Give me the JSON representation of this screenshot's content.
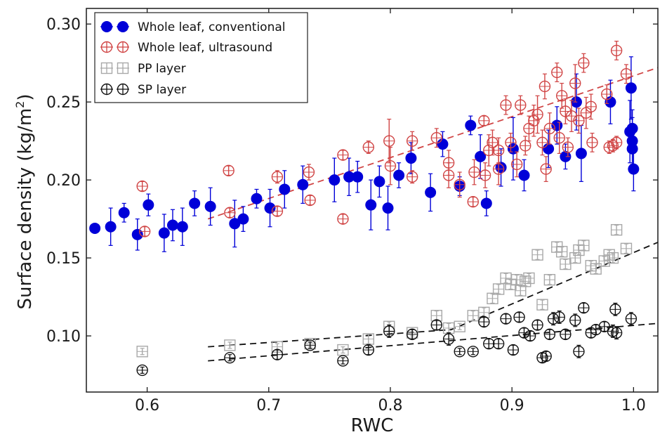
{
  "chart_data": {
    "type": "scatter",
    "xlabel": "RWC",
    "ylabel": "Surface density",
    "ylabel_unit": "(kg/m",
    "ylabel_sup": "2",
    "ylabel_close": ")",
    "xlim": [
      0.55,
      1.02
    ],
    "ylim": [
      0.064,
      0.31
    ],
    "xticks": [
      0.6,
      0.7,
      0.8,
      0.9,
      1.0
    ],
    "xtick_labels": [
      "0.6",
      "0.7",
      "0.8",
      "0.9",
      "1.0"
    ],
    "yticks": [
      0.1,
      0.15,
      0.2,
      0.25,
      0.3
    ],
    "ytick_labels": [
      "0.10",
      "0.15",
      "0.20",
      "0.25",
      "0.30"
    ],
    "legend": [
      {
        "label": "Whole leaf, conventional",
        "style": "filled-circle",
        "color": "#0000d8"
      },
      {
        "label": "Whole leaf, ultrasound",
        "style": "open-circle",
        "color": "#d04444"
      },
      {
        "label": "PP layer",
        "style": "open-square",
        "color": "#a8a8a8"
      },
      {
        "label": "SP layer",
        "style": "open-circle",
        "color": "#111111"
      }
    ],
    "series": [
      {
        "name": "Whole leaf, conventional",
        "color": "#0000d8",
        "marker": "filled-circle",
        "points": [
          [
            0.557,
            0.169,
            0.0
          ],
          [
            0.57,
            0.17,
            0.012
          ],
          [
            0.581,
            0.179,
            0.006
          ],
          [
            0.592,
            0.165,
            0.01
          ],
          [
            0.601,
            0.184,
            0.007
          ],
          [
            0.614,
            0.166,
            0.012
          ],
          [
            0.621,
            0.171,
            0.01
          ],
          [
            0.629,
            0.17,
            0.012
          ],
          [
            0.639,
            0.185,
            0.008
          ],
          [
            0.652,
            0.183,
            0.012
          ],
          [
            0.672,
            0.172,
            0.015
          ],
          [
            0.679,
            0.175,
            0.008
          ],
          [
            0.69,
            0.188,
            0.006
          ],
          [
            0.701,
            0.182,
            0.012
          ],
          [
            0.713,
            0.194,
            0.012
          ],
          [
            0.728,
            0.197,
            0.012
          ],
          [
            0.754,
            0.2,
            0.014
          ],
          [
            0.766,
            0.202,
            0.012
          ],
          [
            0.773,
            0.202,
            0.01
          ],
          [
            0.784,
            0.184,
            0.016
          ],
          [
            0.791,
            0.199,
            0.01
          ],
          [
            0.798,
            0.182,
            0.014
          ],
          [
            0.807,
            0.203,
            0.008
          ],
          [
            0.817,
            0.214,
            0.01
          ],
          [
            0.833,
            0.192,
            0.012
          ],
          [
            0.843,
            0.223,
            0.008
          ],
          [
            0.857,
            0.196,
            0.006
          ],
          [
            0.866,
            0.235,
            0.006
          ],
          [
            0.874,
            0.215,
            0.014
          ],
          [
            0.879,
            0.185,
            0.008
          ],
          [
            0.891,
            0.208,
            0.012
          ],
          [
            0.901,
            0.22,
            0.02
          ],
          [
            0.91,
            0.203,
            0.01
          ],
          [
            0.93,
            0.22,
            0.012
          ],
          [
            0.937,
            0.235,
            0.012
          ],
          [
            0.944,
            0.215,
            0.008
          ],
          [
            0.953,
            0.25,
            0.018
          ],
          [
            0.957,
            0.217,
            0.018
          ],
          [
            0.981,
            0.25,
            0.014
          ],
          [
            0.997,
            0.231,
            0.02
          ],
          [
            0.998,
            0.259,
            0.02
          ],
          [
            0.999,
            0.225,
            0.015
          ],
          [
            0.999,
            0.22,
            0.012
          ],
          [
            1.0,
            0.207,
            0.014
          ],
          [
            0.999,
            0.233,
            0.012
          ]
        ]
      },
      {
        "name": "Whole leaf, ultrasound",
        "color": "#d04444",
        "marker": "open-circle",
        "points": [
          [
            0.596,
            0.196,
            0.003
          ],
          [
            0.598,
            0.167,
            0.003
          ],
          [
            0.667,
            0.206,
            0.003
          ],
          [
            0.668,
            0.179,
            0.003
          ],
          [
            0.707,
            0.202,
            0.004
          ],
          [
            0.707,
            0.18,
            0.003
          ],
          [
            0.733,
            0.205,
            0.005
          ],
          [
            0.734,
            0.187,
            0.003
          ],
          [
            0.761,
            0.216,
            0.003
          ],
          [
            0.761,
            0.175,
            0.003
          ],
          [
            0.782,
            0.221,
            0.004
          ],
          [
            0.799,
            0.225,
            0.014
          ],
          [
            0.8,
            0.209,
            0.012
          ],
          [
            0.818,
            0.225,
            0.006
          ],
          [
            0.818,
            0.202,
            0.004
          ],
          [
            0.838,
            0.227,
            0.006
          ],
          [
            0.848,
            0.211,
            0.008
          ],
          [
            0.848,
            0.203,
            0.008
          ],
          [
            0.857,
            0.197,
            0.008
          ],
          [
            0.868,
            0.186,
            0.003
          ],
          [
            0.869,
            0.205,
            0.008
          ],
          [
            0.877,
            0.238,
            0.003
          ],
          [
            0.878,
            0.203,
            0.008
          ],
          [
            0.881,
            0.219,
            0.01
          ],
          [
            0.884,
            0.224,
            0.008
          ],
          [
            0.889,
            0.207,
            0.01
          ],
          [
            0.889,
            0.219,
            0.008
          ],
          [
            0.895,
            0.248,
            0.006
          ],
          [
            0.899,
            0.224,
            0.006
          ],
          [
            0.904,
            0.21,
            0.008
          ],
          [
            0.907,
            0.248,
            0.006
          ],
          [
            0.911,
            0.222,
            0.006
          ],
          [
            0.914,
            0.233,
            0.008
          ],
          [
            0.918,
            0.238,
            0.01
          ],
          [
            0.921,
            0.242,
            0.012
          ],
          [
            0.925,
            0.224,
            0.008
          ],
          [
            0.927,
            0.26,
            0.008
          ],
          [
            0.928,
            0.207,
            0.008
          ],
          [
            0.931,
            0.233,
            0.01
          ],
          [
            0.937,
            0.269,
            0.006
          ],
          [
            0.939,
            0.227,
            0.01
          ],
          [
            0.941,
            0.254,
            0.008
          ],
          [
            0.944,
            0.244,
            0.008
          ],
          [
            0.946,
            0.221,
            0.006
          ],
          [
            0.949,
            0.241,
            0.01
          ],
          [
            0.952,
            0.262,
            0.012
          ],
          [
            0.955,
            0.238,
            0.008
          ],
          [
            0.959,
            0.275,
            0.006
          ],
          [
            0.961,
            0.243,
            0.01
          ],
          [
            0.965,
            0.247,
            0.008
          ],
          [
            0.966,
            0.224,
            0.006
          ],
          [
            0.978,
            0.255,
            0.006
          ],
          [
            0.98,
            0.221,
            0.004
          ],
          [
            0.983,
            0.222,
            0.004
          ],
          [
            0.986,
            0.224,
            0.004
          ],
          [
            0.986,
            0.283,
            0.006
          ],
          [
            0.994,
            0.268,
            0.006
          ]
        ]
      },
      {
        "name": "PP layer",
        "color": "#a8a8a8",
        "marker": "open-square",
        "points": [
          [
            0.596,
            0.09,
            0.002
          ],
          [
            0.668,
            0.094,
            0.002
          ],
          [
            0.707,
            0.093,
            0.002
          ],
          [
            0.734,
            0.095,
            0.002
          ],
          [
            0.761,
            0.091,
            0.002
          ],
          [
            0.782,
            0.098,
            0.003
          ],
          [
            0.799,
            0.106,
            0.003
          ],
          [
            0.818,
            0.102,
            0.002
          ],
          [
            0.838,
            0.113,
            0.003
          ],
          [
            0.848,
            0.105,
            0.003
          ],
          [
            0.857,
            0.106,
            0.002
          ],
          [
            0.868,
            0.113,
            0.003
          ],
          [
            0.877,
            0.115,
            0.003
          ],
          [
            0.884,
            0.124,
            0.003
          ],
          [
            0.889,
            0.13,
            0.003
          ],
          [
            0.895,
            0.137,
            0.003
          ],
          [
            0.899,
            0.133,
            0.003
          ],
          [
            0.904,
            0.136,
            0.003
          ],
          [
            0.907,
            0.129,
            0.003
          ],
          [
            0.911,
            0.135,
            0.003
          ],
          [
            0.914,
            0.137,
            0.003
          ],
          [
            0.921,
            0.152,
            0.003
          ],
          [
            0.925,
            0.12,
            0.003
          ],
          [
            0.931,
            0.136,
            0.003
          ],
          [
            0.937,
            0.157,
            0.003
          ],
          [
            0.941,
            0.154,
            0.003
          ],
          [
            0.944,
            0.146,
            0.003
          ],
          [
            0.952,
            0.15,
            0.003
          ],
          [
            0.955,
            0.155,
            0.003
          ],
          [
            0.959,
            0.158,
            0.003
          ],
          [
            0.965,
            0.145,
            0.003
          ],
          [
            0.969,
            0.143,
            0.003
          ],
          [
            0.976,
            0.148,
            0.003
          ],
          [
            0.98,
            0.152,
            0.003
          ],
          [
            0.983,
            0.15,
            0.003
          ],
          [
            0.986,
            0.168,
            0.003
          ],
          [
            0.994,
            0.156,
            0.003
          ]
        ]
      },
      {
        "name": "SP layer",
        "color": "#111111",
        "marker": "open-circle",
        "points": [
          [
            0.596,
            0.078,
            0.002
          ],
          [
            0.668,
            0.086,
            0.002
          ],
          [
            0.707,
            0.088,
            0.003
          ],
          [
            0.734,
            0.094,
            0.002
          ],
          [
            0.761,
            0.084,
            0.002
          ],
          [
            0.782,
            0.091,
            0.003
          ],
          [
            0.799,
            0.103,
            0.004
          ],
          [
            0.818,
            0.101,
            0.003
          ],
          [
            0.838,
            0.107,
            0.003
          ],
          [
            0.848,
            0.098,
            0.004
          ],
          [
            0.857,
            0.09,
            0.002
          ],
          [
            0.868,
            0.09,
            0.002
          ],
          [
            0.877,
            0.109,
            0.003
          ],
          [
            0.881,
            0.095,
            0.003
          ],
          [
            0.889,
            0.095,
            0.003
          ],
          [
            0.895,
            0.111,
            0.003
          ],
          [
            0.901,
            0.091,
            0.003
          ],
          [
            0.906,
            0.112,
            0.003
          ],
          [
            0.91,
            0.102,
            0.003
          ],
          [
            0.915,
            0.1,
            0.003
          ],
          [
            0.921,
            0.107,
            0.003
          ],
          [
            0.925,
            0.086,
            0.003
          ],
          [
            0.928,
            0.087,
            0.003
          ],
          [
            0.931,
            0.101,
            0.003
          ],
          [
            0.934,
            0.111,
            0.004
          ],
          [
            0.939,
            0.112,
            0.004
          ],
          [
            0.944,
            0.101,
            0.003
          ],
          [
            0.952,
            0.11,
            0.004
          ],
          [
            0.955,
            0.09,
            0.004
          ],
          [
            0.959,
            0.118,
            0.003
          ],
          [
            0.965,
            0.102,
            0.003
          ],
          [
            0.969,
            0.104,
            0.003
          ],
          [
            0.976,
            0.106,
            0.003
          ],
          [
            0.983,
            0.103,
            0.004
          ],
          [
            0.985,
            0.117,
            0.004
          ],
          [
            0.986,
            0.102,
            0.004
          ],
          [
            0.998,
            0.111,
            0.004
          ]
        ]
      }
    ],
    "fit_lines": [
      {
        "series": "Whole leaf, ultrasound",
        "color": "#d04444",
        "x": [
          0.65,
          1.02
        ],
        "y": [
          0.175,
          0.272
        ]
      },
      {
        "series": "PP layer",
        "color": "#111111",
        "x": [
          0.65,
          0.85,
          1.02
        ],
        "y": [
          0.093,
          0.104,
          0.16
        ]
      },
      {
        "series": "SP layer",
        "color": "#111111",
        "x": [
          0.65,
          1.02
        ],
        "y": [
          0.084,
          0.108
        ]
      }
    ]
  }
}
